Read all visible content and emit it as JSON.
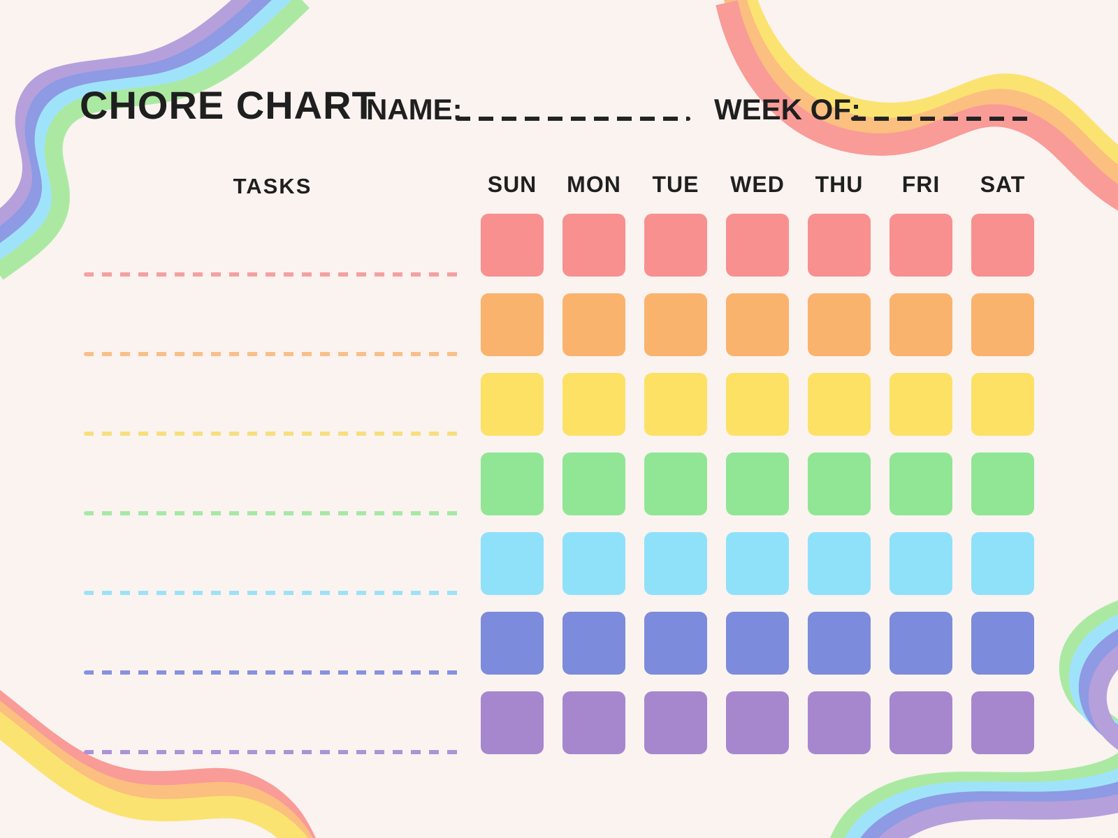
{
  "page": {
    "background": "#FAF3F0",
    "ink": "#1F1F1F"
  },
  "header": {
    "title": "CHORE CHART",
    "name_label": "NAME:",
    "name_value": "",
    "week_of_label": "WEEK OF:",
    "week_of_value": ""
  },
  "table": {
    "tasks_header": "TASKS",
    "day_headers": [
      "SUN",
      "MON",
      "TUE",
      "WED",
      "THU",
      "FRI",
      "SAT"
    ],
    "rows": [
      {
        "task_value": "",
        "cell_color": "#F8908F",
        "line_color": "#F5A0A0"
      },
      {
        "task_value": "",
        "cell_color": "#FAB36C",
        "line_color": "#F8C089"
      },
      {
        "task_value": "",
        "cell_color": "#FCE165",
        "line_color": "#F7DF80"
      },
      {
        "task_value": "",
        "cell_color": "#90E695",
        "line_color": "#A6E8A6"
      },
      {
        "task_value": "",
        "cell_color": "#8FE1FA",
        "line_color": "#9CE2F7"
      },
      {
        "task_value": "",
        "cell_color": "#7C8BDB",
        "line_color": "#8791DE"
      },
      {
        "task_value": "",
        "cell_color": "#A687CE",
        "line_color": "#AC93D6"
      }
    ]
  },
  "decorations": {
    "cool_ribbon_colors": [
      "#B5A0DB",
      "#8E9AE3",
      "#9FE3FB",
      "#ABE9A3"
    ],
    "warm_ribbon_colors": [
      "#FBE372",
      "#FBBF7F",
      "#F99B97"
    ]
  }
}
